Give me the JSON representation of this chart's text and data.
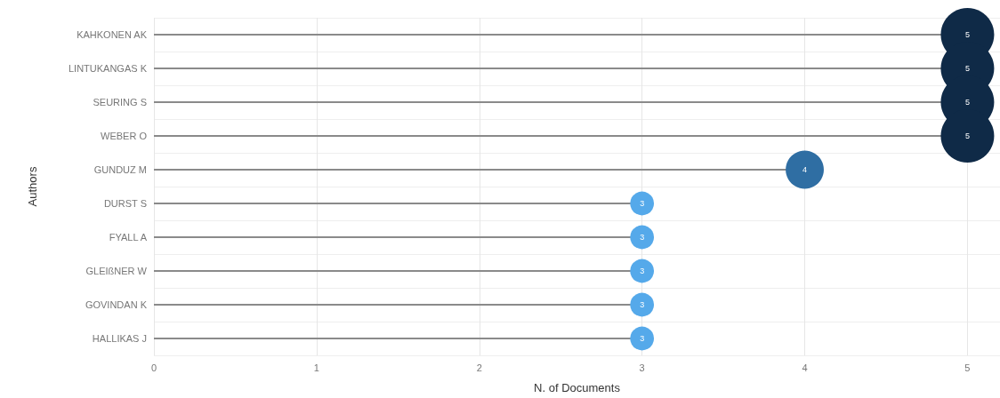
{
  "chart_data": {
    "type": "lollipop",
    "orientation": "horizontal",
    "xlabel": "N. of Documents",
    "ylabel": "Authors",
    "categories": [
      "KAHKONEN AK",
      "LINTUKANGAS K",
      "SEURING S",
      "WEBER O",
      "GUNDUZ M",
      "DURST S",
      "FYALL A",
      "GLEIßNER W",
      "GOVINDAN K",
      "HALLIKAS J"
    ],
    "values": [
      5,
      5,
      5,
      5,
      4,
      3,
      3,
      3,
      3,
      3
    ],
    "sizes": [
      1,
      1,
      1,
      1,
      0.51,
      0.2,
      0.2,
      0.2,
      0.2,
      0.2
    ],
    "colors": [
      "#0f2a47",
      "#0f2a47",
      "#0f2a47",
      "#0f2a47",
      "#2f6ea3",
      "#55a9ea",
      "#55a9ea",
      "#55a9ea",
      "#55a9ea",
      "#55a9ea"
    ],
    "xlim": [
      0,
      5.2
    ],
    "xticks": [
      0,
      1,
      2,
      3,
      4,
      5
    ],
    "grid": true,
    "data_labels": true,
    "marker": "circle"
  }
}
